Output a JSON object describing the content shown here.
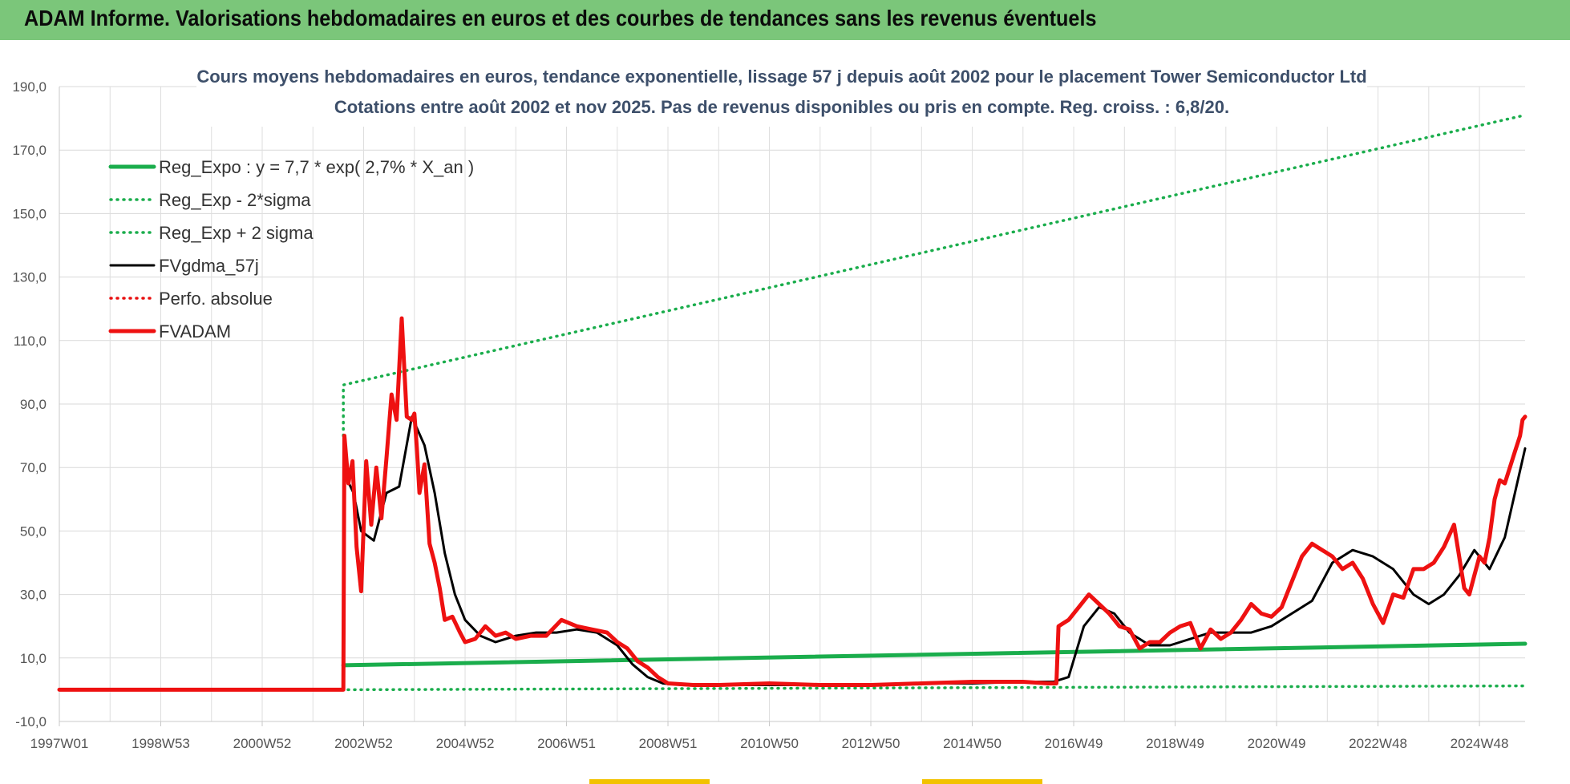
{
  "header": {
    "title": "ADAM Informe. Valorisations hebdomadaires en euros et des courbes de tendances sans les revenus éventuels"
  },
  "chart_data": {
    "type": "line",
    "title_line1": "Cours moyens hebdomadaires en euros, tendance exponentielle, lissage 57 j depuis août 2002 pour le placement Tower Semiconductor Ltd",
    "title_line2": "Cotations entre août 2002 et nov 2025.  Pas de revenus disponibles ou pris en compte. Reg. croiss. : 6,8/20.",
    "xlabel": "",
    "ylabel": "",
    "ylim": [
      -10,
      190
    ],
    "xlim": [
      1997.0,
      2025.9
    ],
    "yticks": [
      "-10,0",
      "10,0",
      "30,0",
      "50,0",
      "70,0",
      "90,0",
      "110,0",
      "130,0",
      "150,0",
      "170,0",
      "190,0"
    ],
    "xticks": [
      {
        "label": "1997W01",
        "x": 1997.0
      },
      {
        "label": "1998W53",
        "x": 1999.0
      },
      {
        "label": "2000W52",
        "x": 2001.0
      },
      {
        "label": "2002W52",
        "x": 2003.0
      },
      {
        "label": "2004W52",
        "x": 2005.0
      },
      {
        "label": "2006W51",
        "x": 2007.0
      },
      {
        "label": "2008W51",
        "x": 2009.0
      },
      {
        "label": "2010W50",
        "x": 2011.0
      },
      {
        "label": "2012W50",
        "x": 2013.0
      },
      {
        "label": "2014W50",
        "x": 2015.0
      },
      {
        "label": "2016W49",
        "x": 2017.0
      },
      {
        "label": "2018W49",
        "x": 2019.0
      },
      {
        "label": "2020W49",
        "x": 2021.0
      },
      {
        "label": "2022W48",
        "x": 2023.0
      },
      {
        "label": "2024W48",
        "x": 2025.0
      }
    ],
    "grid": true,
    "legend_position": "top-left",
    "series": [
      {
        "name": "Reg_Expo : y = 7,7 * exp( 2,7% *  X_an )",
        "color": "#1aad4c",
        "style": "solid-thick",
        "x": [
          2002.6,
          2025.9
        ],
        "y": [
          7.7,
          14.5
        ]
      },
      {
        "name": "Reg_Exp - 2*sigma",
        "color": "#1aad4c",
        "style": "dotted",
        "x": [
          1997.0,
          2002.6,
          2025.9
        ],
        "y": [
          0,
          0,
          1.2
        ]
      },
      {
        "name": "Reg_Exp + 2 sigma",
        "color": "#1aad4c",
        "style": "dotted",
        "x": [
          2002.6,
          2002.6,
          2025.9
        ],
        "y": [
          80,
          96,
          181
        ]
      },
      {
        "name": "FVgdma_57j",
        "color": "#000000",
        "style": "solid",
        "x": [
          1997.0,
          2002.6,
          2002.62,
          2002.8,
          2002.95,
          2003.2,
          2003.45,
          2003.7,
          2003.95,
          2004.2,
          2004.4,
          2004.6,
          2004.8,
          2005.0,
          2005.3,
          2005.6,
          2006.0,
          2006.4,
          2006.8,
          2007.2,
          2007.6,
          2008.0,
          2008.3,
          2008.6,
          2008.9,
          2009.3,
          2010.0,
          2011.0,
          2012.0,
          2013.0,
          2014.0,
          2015.0,
          2016.0,
          2016.6,
          2016.9,
          2017.2,
          2017.5,
          2017.8,
          2018.1,
          2018.5,
          2018.9,
          2019.3,
          2019.7,
          2020.1,
          2020.5,
          2020.9,
          2021.3,
          2021.7,
          2022.1,
          2022.5,
          2022.9,
          2023.3,
          2023.7,
          2024.0,
          2024.3,
          2024.6,
          2024.9,
          2025.2,
          2025.5,
          2025.9
        ],
        "y": [
          0,
          0,
          68,
          62,
          50,
          47,
          62,
          64,
          86,
          77,
          62,
          43,
          30,
          22,
          17,
          15,
          17,
          18,
          18,
          19,
          18,
          14,
          8,
          4,
          2,
          1.5,
          1.5,
          1.5,
          1.5,
          1.5,
          2,
          2,
          2.5,
          2.5,
          4,
          20,
          26,
          24,
          18,
          14,
          14,
          16,
          18,
          18,
          18,
          20,
          24,
          28,
          40,
          44,
          42,
          38,
          30,
          27,
          30,
          36,
          44,
          38,
          48,
          76
        ]
      },
      {
        "name": "Perfo. absolue",
        "color": "#e81010",
        "style": "dotted",
        "x": [],
        "y": []
      },
      {
        "name": "FVADAM",
        "color": "#ee1111",
        "style": "solid-thick",
        "x": [
          1997.0,
          2002.6,
          2002.62,
          2002.7,
          2002.78,
          2002.86,
          2002.95,
          2003.05,
          2003.15,
          2003.25,
          2003.35,
          2003.45,
          2003.55,
          2003.65,
          2003.75,
          2003.85,
          2003.95,
          2004.0,
          2004.05,
          2004.1,
          2004.2,
          2004.3,
          2004.4,
          2004.5,
          2004.6,
          2004.75,
          2004.9,
          2005.0,
          2005.2,
          2005.4,
          2005.6,
          2005.8,
          2006.0,
          2006.3,
          2006.6,
          2006.9,
          2007.2,
          2007.5,
          2007.8,
          2008.0,
          2008.2,
          2008.4,
          2008.6,
          2008.8,
          2009.0,
          2009.5,
          2010.0,
          2011.0,
          2012.0,
          2013.0,
          2014.0,
          2015.0,
          2016.0,
          2016.5,
          2016.66,
          2016.7,
          2016.9,
          2017.1,
          2017.3,
          2017.5,
          2017.7,
          2017.9,
          2018.1,
          2018.3,
          2018.5,
          2018.7,
          2018.9,
          2019.1,
          2019.3,
          2019.5,
          2019.7,
          2019.9,
          2020.1,
          2020.3,
          2020.5,
          2020.7,
          2020.9,
          2021.1,
          2021.3,
          2021.5,
          2021.7,
          2021.9,
          2022.1,
          2022.3,
          2022.5,
          2022.7,
          2022.9,
          2023.1,
          2023.3,
          2023.5,
          2023.7,
          2023.9,
          2024.1,
          2024.3,
          2024.5,
          2024.7,
          2024.8,
          2024.9,
          2025.0,
          2025.1,
          2025.2,
          2025.3,
          2025.4,
          2025.5,
          2025.6,
          2025.7,
          2025.8,
          2025.85,
          2025.9
        ],
        "y": [
          0,
          0,
          80,
          65,
          72,
          45,
          31,
          72,
          52,
          70,
          54,
          73,
          93,
          85,
          117,
          86,
          85,
          87,
          76,
          62,
          71,
          46,
          40,
          32,
          22,
          23,
          18,
          15,
          16,
          20,
          17,
          18,
          16,
          17,
          17,
          22,
          20,
          19,
          18,
          15,
          13,
          9,
          7,
          4,
          2,
          1.5,
          1.5,
          2,
          1.5,
          1.5,
          2,
          2.5,
          2.5,
          2,
          2,
          20,
          22,
          26,
          30,
          27,
          24,
          20,
          19,
          13,
          15,
          15,
          18,
          20,
          21,
          13,
          19,
          16,
          18,
          22,
          27,
          24,
          23,
          26,
          34,
          42,
          46,
          44,
          42,
          38,
          40,
          35,
          27,
          21,
          30,
          29,
          38,
          38,
          40,
          45,
          52,
          32,
          30,
          36,
          42,
          40,
          48,
          60,
          66,
          65,
          70,
          75,
          80,
          85,
          86
        ]
      }
    ]
  }
}
